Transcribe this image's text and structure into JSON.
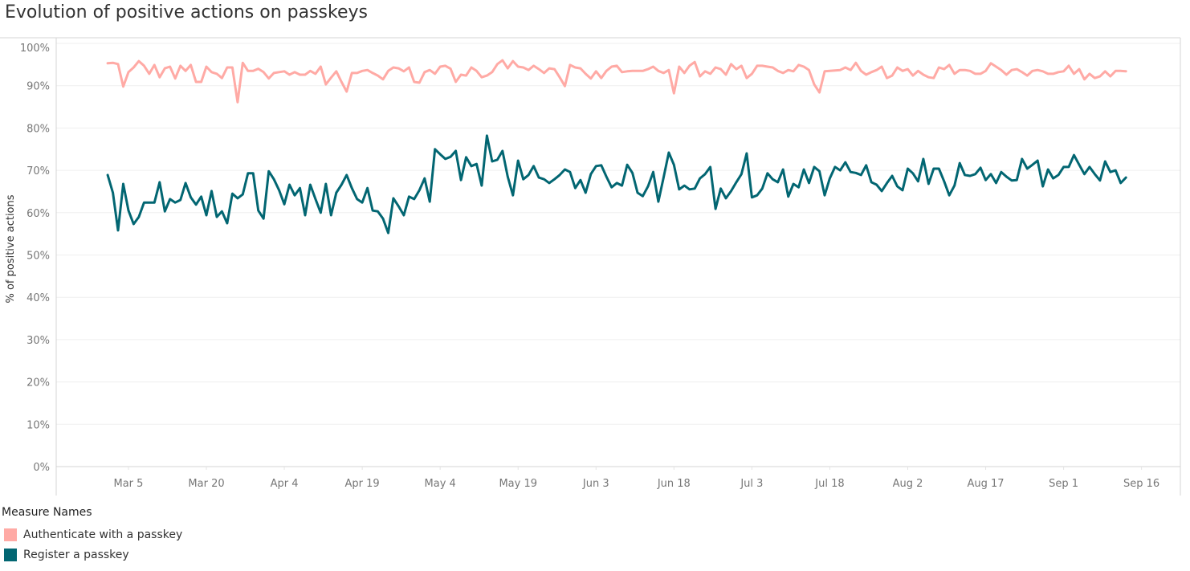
{
  "title": "Evolution of positive actions on passkeys",
  "colors": {
    "authenticate": "#ffaaa5",
    "register": "#026672",
    "grid": "#efefef",
    "axis": "#d4d4d4"
  },
  "chart_data": {
    "type": "line",
    "title": "Evolution of positive actions on passkeys",
    "xlabel": "",
    "ylabel": "% of positive actions",
    "ylim": [
      0,
      100
    ],
    "y_ticks": [
      "0%",
      "10%",
      "20%",
      "30%",
      "40%",
      "50%",
      "60%",
      "70%",
      "80%",
      "90%",
      "100%"
    ],
    "x_ticks": [
      "Mar 5",
      "Mar 20",
      "Apr 4",
      "Apr 19",
      "May 4",
      "May 19",
      "Jun 3",
      "Jun 18",
      "Jul 3",
      "Jul 18",
      "Aug 2",
      "Aug 17",
      "Sep 1",
      "Sep 16"
    ],
    "grid": true,
    "legend_position": "bottom-left",
    "legend_title": "Measure Names",
    "x": [
      "Mar 1",
      "Mar 2",
      "Mar 3",
      "Mar 4",
      "Mar 5",
      "Mar 6",
      "Mar 7",
      "Mar 8",
      "Mar 9",
      "Mar 10",
      "Mar 11",
      "Mar 12",
      "Mar 13",
      "Mar 14",
      "Mar 15",
      "Mar 16",
      "Mar 17",
      "Mar 18",
      "Mar 19",
      "Mar 20",
      "Mar 21",
      "Mar 22",
      "Mar 23",
      "Mar 24",
      "Mar 25",
      "Mar 26",
      "Mar 27",
      "Mar 28",
      "Mar 29",
      "Mar 30",
      "Mar 31",
      "Apr 1",
      "Apr 2",
      "Apr 3",
      "Apr 4",
      "Apr 5",
      "Apr 6",
      "Apr 7",
      "Apr 8",
      "Apr 9",
      "Apr 10",
      "Apr 11",
      "Apr 12",
      "Apr 13",
      "Apr 14",
      "Apr 15",
      "Apr 16",
      "Apr 17",
      "Apr 18",
      "Apr 19",
      "Apr 20",
      "Apr 21",
      "Apr 22",
      "Apr 23",
      "Apr 24",
      "Apr 25",
      "Apr 26",
      "Apr 27",
      "Apr 28",
      "Apr 29",
      "Apr 30",
      "May 1",
      "May 2",
      "May 3",
      "May 4",
      "May 5",
      "May 6",
      "May 7",
      "May 8",
      "May 9",
      "May 10",
      "May 11",
      "May 12",
      "May 13",
      "May 14",
      "May 15",
      "May 16",
      "May 17",
      "May 18",
      "May 19",
      "May 20",
      "May 21",
      "May 22",
      "May 23",
      "May 24",
      "May 25",
      "May 26",
      "May 27",
      "May 28",
      "May 29",
      "May 30",
      "May 31",
      "Jun 1",
      "Jun 2",
      "Jun 3",
      "Jun 4",
      "Jun 5",
      "Jun 6",
      "Jun 7",
      "Jun 8",
      "Jun 9",
      "Jun 10",
      "Jun 11",
      "Jun 12",
      "Jun 13",
      "Jun 14",
      "Jun 15",
      "Jun 16",
      "Jun 17",
      "Jun 18",
      "Jun 19",
      "Jun 20",
      "Jun 21",
      "Jun 22",
      "Jun 23",
      "Jun 24",
      "Jun 25",
      "Jun 26",
      "Jun 27",
      "Jun 28",
      "Jun 29",
      "Jun 30",
      "Jul 1",
      "Jul 2",
      "Jul 3",
      "Jul 4",
      "Jul 5",
      "Jul 6",
      "Jul 7",
      "Jul 8",
      "Jul 9",
      "Jul 10",
      "Jul 11",
      "Jul 12",
      "Jul 13",
      "Jul 14",
      "Jul 15",
      "Jul 16",
      "Jul 17",
      "Jul 18",
      "Jul 19",
      "Jul 20",
      "Jul 21",
      "Jul 22",
      "Jul 23",
      "Jul 24",
      "Jul 25",
      "Jul 26",
      "Jul 27",
      "Jul 28",
      "Jul 29",
      "Jul 30",
      "Jul 31",
      "Aug 1",
      "Aug 2",
      "Aug 3",
      "Aug 4",
      "Aug 5",
      "Aug 6",
      "Aug 7",
      "Aug 8",
      "Aug 9",
      "Aug 10",
      "Aug 11",
      "Aug 12",
      "Aug 13",
      "Aug 14",
      "Aug 15",
      "Aug 16",
      "Aug 17",
      "Aug 18",
      "Aug 19",
      "Aug 20",
      "Aug 21",
      "Aug 22",
      "Aug 23",
      "Aug 24",
      "Aug 25",
      "Aug 26",
      "Aug 27",
      "Aug 28",
      "Aug 29",
      "Aug 30",
      "Aug 31",
      "Sep 1",
      "Sep 2",
      "Sep 3",
      "Sep 4",
      "Sep 5",
      "Sep 6",
      "Sep 7",
      "Sep 8",
      "Sep 9",
      "Sep 10",
      "Sep 11",
      "Sep 12",
      "Sep 13"
    ],
    "series": [
      {
        "name": "Authenticate with a passkey",
        "color": "#ffaaa5",
        "values": [
          95.3,
          95.4,
          95.1,
          89.8,
          93.2,
          94.3,
          95.8,
          94.7,
          92.8,
          94.9,
          92,
          94.1,
          94.5,
          91.7,
          94.7,
          93.5,
          94.9,
          90.9,
          90.9,
          94.5,
          93.2,
          92.8,
          91.8,
          94.3,
          94.3,
          86.1,
          95.4,
          93.5,
          93.5,
          94,
          93.2,
          91.7,
          93,
          93.2,
          93.4,
          92.6,
          93.2,
          92.6,
          92.6,
          93.5,
          92.8,
          94.5,
          90.3,
          91.9,
          93.4,
          90.9,
          88.6,
          93,
          93,
          93.5,
          93.7,
          93,
          92.4,
          91.5,
          93.5,
          94.3,
          94.1,
          93.4,
          94.3,
          90.9,
          90.7,
          93.2,
          93.7,
          92.8,
          94.5,
          94.7,
          94,
          90.9,
          92.6,
          92.4,
          94.3,
          93.5,
          92,
          92.4,
          93.2,
          95.1,
          96,
          94.1,
          95.8,
          94.5,
          94.3,
          93.7,
          94.7,
          93.9,
          93,
          94.1,
          93.9,
          92,
          89.9,
          94.9,
          94.3,
          94.1,
          92.8,
          91.7,
          93.4,
          91.8,
          93.5,
          94.5,
          94.7,
          93.2,
          93.4,
          93.5,
          93.5,
          93.5,
          93.9,
          94.5,
          93.5,
          93,
          93.7,
          88.2,
          94.5,
          93,
          94.7,
          95.6,
          92.2,
          93.4,
          92.8,
          94.3,
          93.9,
          92.6,
          95.1,
          93.9,
          94.7,
          91.8,
          92.8,
          94.7,
          94.7,
          94.5,
          94.3,
          93.5,
          93,
          93.7,
          93.4,
          94.9,
          94.5,
          93.7,
          90.3,
          88.4,
          93.4,
          93.5,
          93.6,
          93.7,
          94.3,
          93.7,
          95.4,
          93.5,
          92.6,
          93.2,
          93.7,
          94.5,
          91.8,
          92.4,
          94.3,
          93.5,
          93.9,
          92.4,
          93.5,
          92.6,
          92,
          91.8,
          94.3,
          93.9,
          94.9,
          92.8,
          93.7,
          93.7,
          93.5,
          92.8,
          92.8,
          93.5,
          95.3,
          94.5,
          93.7,
          92.6,
          93.7,
          93.9,
          93.2,
          92.4,
          93.5,
          93.7,
          93.4,
          92.8,
          92.8,
          93.2,
          93.4,
          94.7,
          92.8,
          93.9,
          91.5,
          92.8,
          91.8,
          92.2,
          93.4,
          92.2,
          93.5,
          93.5,
          93.4
        ]
      },
      {
        "name": "Register a passkey",
        "color": "#026672",
        "values": [
          68.9,
          64.7,
          55.8,
          66.8,
          60.5,
          57.3,
          59,
          62.4,
          62.4,
          62.4,
          67.2,
          60.3,
          63.2,
          62.4,
          63,
          67,
          63.6,
          61.9,
          63.8,
          59.4,
          65.1,
          59,
          60.3,
          57.5,
          64.5,
          63.4,
          64.3,
          69.3,
          69.3,
          60.5,
          58.6,
          69.8,
          67.9,
          65.3,
          62,
          66.6,
          64.1,
          65.8,
          59.4,
          66.6,
          63.2,
          60,
          66.8,
          59.4,
          64.7,
          66.6,
          68.9,
          65.8,
          63.2,
          62.4,
          65.8,
          60.5,
          60.3,
          58.6,
          55.2,
          63.4,
          61.5,
          59.4,
          63.8,
          63.2,
          65.3,
          68.1,
          62.6,
          75,
          73.8,
          72.7,
          73.2,
          74.6,
          67.7,
          73.1,
          71,
          71.5,
          66.4,
          78.2,
          72.1,
          72.5,
          74.6,
          68.5,
          64.1,
          72.3,
          67.9,
          68.9,
          71,
          68.3,
          67.9,
          67,
          67.9,
          68.9,
          70.2,
          69.6,
          65.8,
          67.7,
          64.7,
          69.1,
          71,
          71.2,
          68.5,
          66,
          67,
          66.4,
          71.3,
          69.4,
          64.7,
          63.9,
          66.2,
          69.6,
          62.6,
          68.3,
          74.2,
          71.3,
          65.5,
          66.4,
          65.5,
          65.7,
          68.1,
          69.1,
          70.8,
          60.9,
          65.7,
          63.4,
          65.1,
          67.2,
          69.1,
          74,
          63.6,
          64.1,
          65.7,
          69.3,
          67.9,
          67.2,
          70.2,
          63.8,
          66.8,
          66,
          70.2,
          67,
          70.8,
          69.8,
          64.1,
          68.1,
          70.8,
          70,
          71.9,
          69.6,
          69.4,
          68.9,
          71.2,
          67.2,
          66.6,
          65.1,
          67,
          68.7,
          66.2,
          65.3,
          70.4,
          69.3,
          67.4,
          72.7,
          66.8,
          70.4,
          70.4,
          67.4,
          64.1,
          66.4,
          71.7,
          68.9,
          68.7,
          69.1,
          70.6,
          67.7,
          69.1,
          67,
          69.6,
          68.5,
          67.6,
          67.7,
          72.7,
          70.4,
          71.3,
          72.3,
          66.2,
          70.2,
          68.1,
          68.9,
          70.8,
          70.8,
          73.6,
          71.3,
          69.1,
          70.8,
          69.1,
          67.6,
          72.1,
          69.6,
          70,
          67,
          68.3
        ]
      }
    ]
  }
}
